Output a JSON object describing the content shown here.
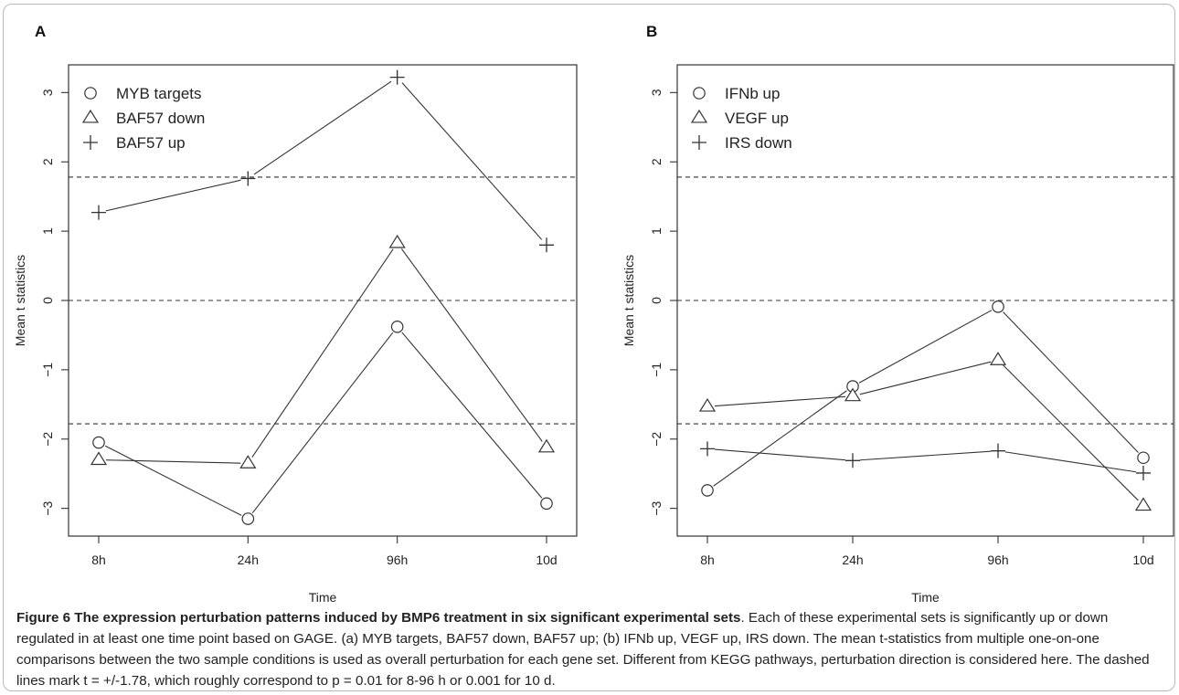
{
  "chart_data": [
    {
      "type": "line",
      "panel_label": "A",
      "categories": [
        "8h",
        "24h",
        "96h",
        "10d"
      ],
      "xlabel": "Time",
      "ylabel": "Mean t statistics",
      "ylim": [
        -3.4,
        3.4
      ],
      "yticks": [
        -3,
        -2,
        -1,
        0,
        1,
        2,
        3
      ],
      "hlines": [
        1.78,
        0,
        -1.78
      ],
      "legend_position": "top-left",
      "series": [
        {
          "name": "MYB targets",
          "marker": "circle",
          "values": [
            -2.05,
            -3.15,
            -0.38,
            -2.93
          ]
        },
        {
          "name": "BAF57 down",
          "marker": "triangle",
          "values": [
            -2.3,
            -2.35,
            0.83,
            -2.12
          ]
        },
        {
          "name": "BAF57 up",
          "marker": "plus",
          "values": [
            1.27,
            1.76,
            3.22,
            0.8
          ]
        }
      ]
    },
    {
      "type": "line",
      "panel_label": "B",
      "categories": [
        "8h",
        "24h",
        "96h",
        "10d"
      ],
      "xlabel": "Time",
      "ylabel": "Mean t statistics",
      "ylim": [
        -3.4,
        3.4
      ],
      "yticks": [
        -3,
        -2,
        -1,
        0,
        1,
        2,
        3
      ],
      "hlines": [
        1.78,
        0,
        -1.78
      ],
      "legend_position": "top-left",
      "series": [
        {
          "name": "IFNb up",
          "marker": "circle",
          "values": [
            -2.74,
            -1.24,
            -0.09,
            -2.27
          ]
        },
        {
          "name": "VEGF up",
          "marker": "triangle",
          "values": [
            -1.53,
            -1.38,
            -0.86,
            -2.96
          ]
        },
        {
          "name": "IRS down",
          "marker": "plus",
          "values": [
            -2.14,
            -2.31,
            -2.17,
            -2.49
          ]
        }
      ]
    }
  ],
  "caption": {
    "title": "Figure 6 The expression perturbation patterns induced by BMP6 treatment in six significant experimental sets",
    "text": ". Each of these experimental sets is significantly up or down regulated in at least one time point based on GAGE. (a) MYB targets, BAF57 down, BAF57 up; (b) IFNb up, VEGF up, IRS down. The mean t-statistics from multiple one-on-one comparisons between the two sample conditions is used as overall perturbation for each gene set. Different from KEGG pathways, perturbation direction is considered here. The dashed lines mark t = +/-1.78, which roughly correspond to p = 0.01 for 8-96 h or 0.001 for 10 d."
  }
}
